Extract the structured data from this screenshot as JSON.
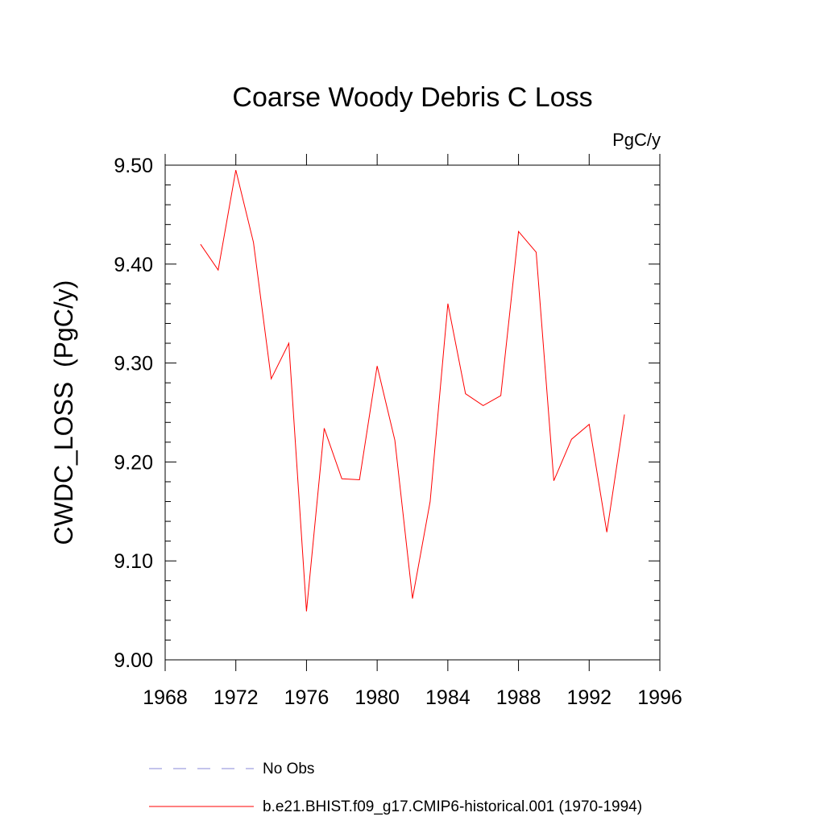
{
  "chart_data": {
    "type": "line",
    "title": "Coarse Woody Debris C Loss",
    "units_label": "PgC/y",
    "ylabel": "CWDC_LOSS  (PgC/y)",
    "xlabel": "",
    "xlim": [
      1968,
      1996
    ],
    "ylim": [
      9.0,
      9.5
    ],
    "xticks": [
      1968,
      1972,
      1976,
      1980,
      1984,
      1988,
      1992,
      1996
    ],
    "xtick_labels": [
      "1968",
      "1972",
      "1976",
      "1980",
      "1984",
      "1988",
      "1992",
      "1996"
    ],
    "yticks": [
      9.0,
      9.1,
      9.2,
      9.3,
      9.4,
      9.5
    ],
    "ytick_labels": [
      "9.00",
      "9.10",
      "9.20",
      "9.30",
      "9.40",
      "9.50"
    ],
    "grid": false,
    "series": [
      {
        "name": "b.e21.BHIST.f09_g17.CMIP6-historical.001 (1970-1994)",
        "color": "#ff0000",
        "x": [
          1970,
          1971,
          1972,
          1973,
          1974,
          1975,
          1976,
          1977,
          1978,
          1979,
          1980,
          1981,
          1982,
          1983,
          1984,
          1985,
          1986,
          1987,
          1988,
          1989,
          1990,
          1991,
          1992,
          1993,
          1994
        ],
        "y": [
          9.42,
          9.394,
          9.495,
          9.422,
          9.284,
          9.32,
          9.049,
          9.234,
          9.183,
          9.182,
          9.297,
          9.222,
          9.062,
          9.16,
          9.36,
          9.269,
          9.257,
          9.267,
          9.433,
          9.412,
          9.181,
          9.223,
          9.238,
          9.129,
          9.248
        ]
      }
    ],
    "legend": [
      {
        "label": "No Obs",
        "style": "dashed",
        "color": "#8a8ad8"
      },
      {
        "label": "b.e21.BHIST.f09_g17.CMIP6-historical.001 (1970-1994)",
        "style": "solid",
        "color": "#ff0000"
      }
    ],
    "legend_position": "bottom"
  }
}
